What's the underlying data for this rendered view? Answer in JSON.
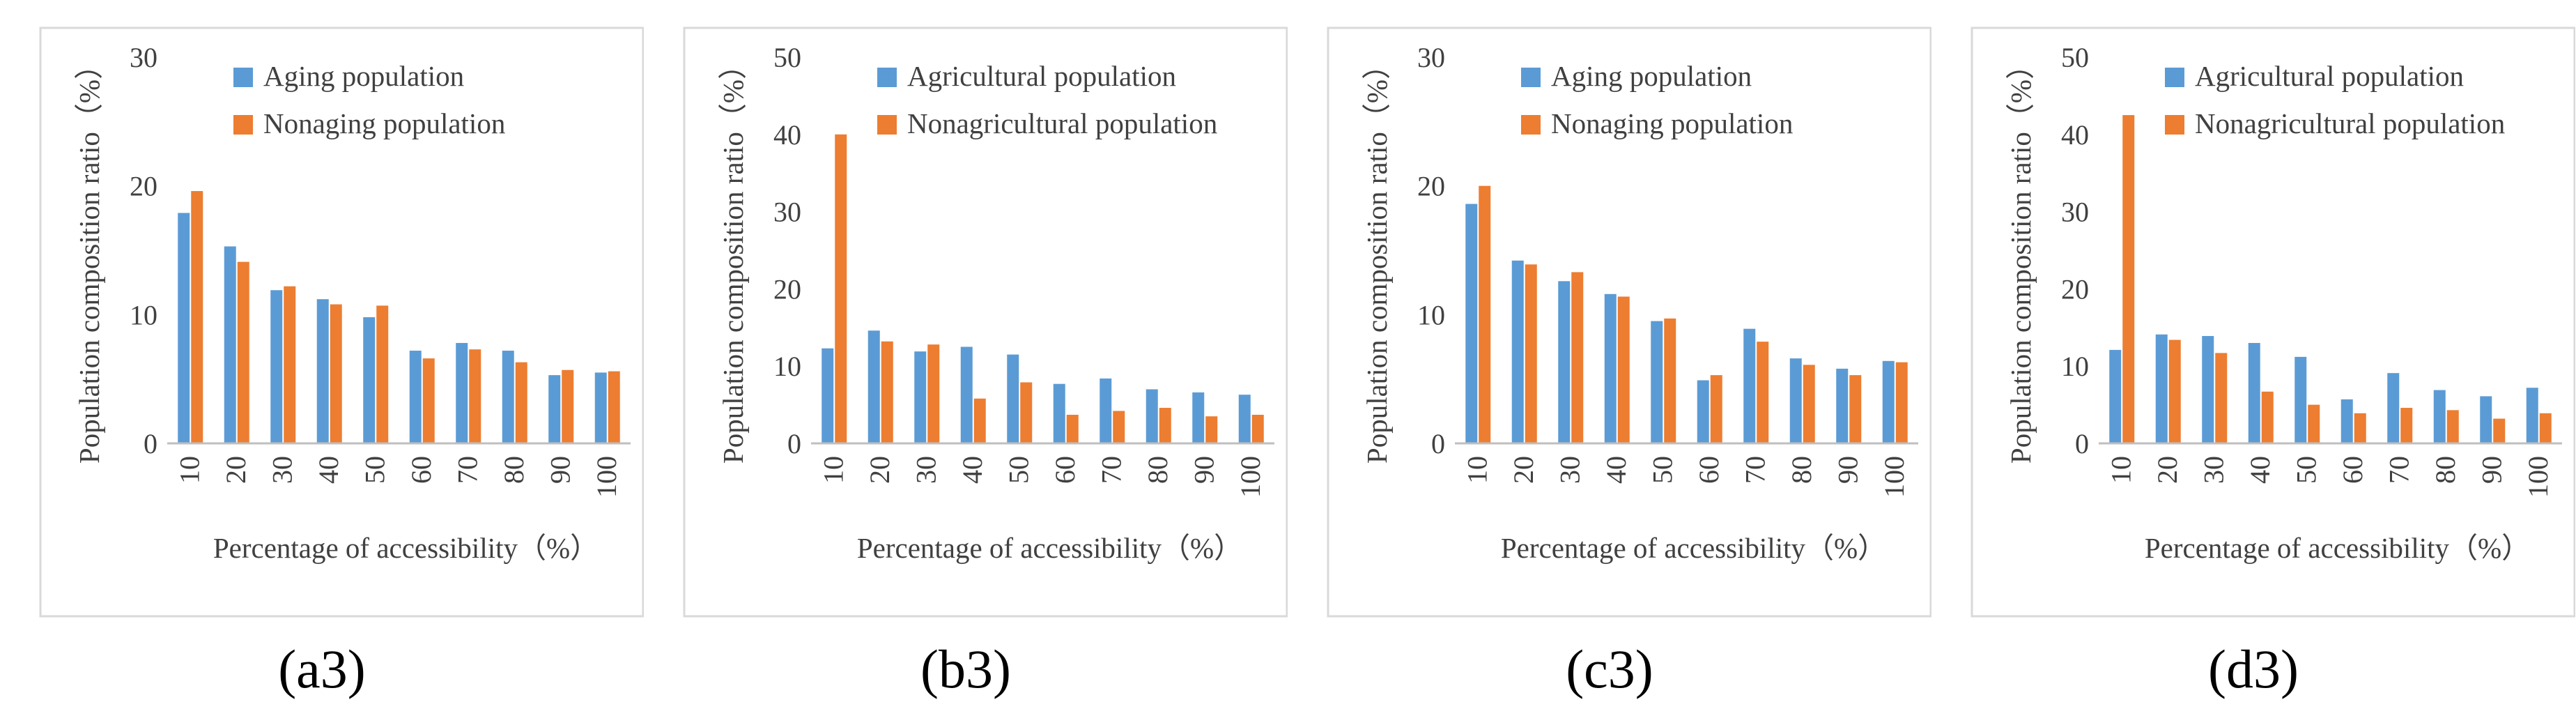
{
  "colors": {
    "series1": "#5b9bd5",
    "series2": "#ed7d31",
    "axis": "#bfbfbf",
    "frame": "#d9d9d9",
    "text": "#404040"
  },
  "panels": [
    {
      "label": "(a3)"
    },
    {
      "label": "(b3)"
    },
    {
      "label": "(c3)"
    },
    {
      "label": "(d3)"
    }
  ],
  "chart_data": [
    {
      "type": "bar",
      "panel": "(a3)",
      "categories": [
        "10",
        "20",
        "30",
        "40",
        "50",
        "60",
        "70",
        "80",
        "90",
        "100"
      ],
      "series": [
        {
          "name": "Aging population",
          "values": [
            17.9,
            15.3,
            11.9,
            11.2,
            9.8,
            7.2,
            7.8,
            7.2,
            5.3,
            5.5
          ]
        },
        {
          "name": "Nonaging population",
          "values": [
            19.6,
            14.1,
            12.2,
            10.8,
            10.7,
            6.6,
            7.3,
            6.3,
            5.7,
            5.6
          ]
        }
      ],
      "title": "",
      "xlabel": "Percentage of accessibility（%）",
      "ylabel": "Population composition ratio（%）",
      "ylim": [
        0,
        30
      ],
      "yticks": [
        "0",
        "10",
        "20",
        "30"
      ],
      "legend": "top"
    },
    {
      "type": "bar",
      "panel": "(b3)",
      "categories": [
        "10",
        "20",
        "30",
        "40",
        "50",
        "60",
        "70",
        "80",
        "90",
        "100"
      ],
      "series": [
        {
          "name": "Agricultural population",
          "values": [
            12.3,
            14.6,
            11.9,
            12.5,
            11.5,
            7.7,
            8.4,
            7.0,
            6.6,
            6.3
          ]
        },
        {
          "name": "Nonagricultural population",
          "values": [
            40.0,
            13.2,
            12.8,
            5.8,
            7.9,
            3.7,
            4.2,
            4.6,
            3.5,
            3.7
          ]
        }
      ],
      "title": "",
      "xlabel": "Percentage of accessibility（%）",
      "ylabel": "Population composition ratio（%）",
      "ylim": [
        0,
        50
      ],
      "yticks": [
        "0",
        "10",
        "20",
        "30",
        "40",
        "50"
      ],
      "legend": "top"
    },
    {
      "type": "bar",
      "panel": "(c3)",
      "categories": [
        "10",
        "20",
        "30",
        "40",
        "50",
        "60",
        "70",
        "80",
        "90",
        "100"
      ],
      "series": [
        {
          "name": "Aging population",
          "values": [
            18.6,
            14.2,
            12.6,
            11.6,
            9.5,
            4.9,
            8.9,
            6.6,
            5.8,
            6.4
          ]
        },
        {
          "name": "Nonaging population",
          "values": [
            20.0,
            13.9,
            13.3,
            11.4,
            9.7,
            5.3,
            7.9,
            6.1,
            5.3,
            6.3
          ]
        }
      ],
      "title": "",
      "xlabel": "Percentage of accessibility（%）",
      "ylabel": "Population composition ratio（%）",
      "ylim": [
        0,
        30
      ],
      "yticks": [
        "0",
        "10",
        "20",
        "30"
      ],
      "legend": "top"
    },
    {
      "type": "bar",
      "panel": "(d3)",
      "categories": [
        "10",
        "20",
        "30",
        "40",
        "50",
        "60",
        "70",
        "80",
        "90",
        "100"
      ],
      "series": [
        {
          "name": "Agricultural population",
          "values": [
            12.1,
            14.1,
            13.9,
            13.0,
            11.2,
            5.7,
            9.1,
            6.9,
            6.1,
            7.2
          ]
        },
        {
          "name": "Nonagricultural population",
          "values": [
            42.5,
            13.4,
            11.7,
            6.7,
            5.0,
            3.9,
            4.6,
            4.3,
            3.2,
            3.9
          ]
        }
      ],
      "title": "",
      "xlabel": "Percentage of accessibility（%）",
      "ylabel": "Population composition ratio（%）",
      "ylim": [
        0,
        50
      ],
      "yticks": [
        "0",
        "10",
        "20",
        "30",
        "40",
        "50"
      ],
      "legend": "top"
    }
  ]
}
